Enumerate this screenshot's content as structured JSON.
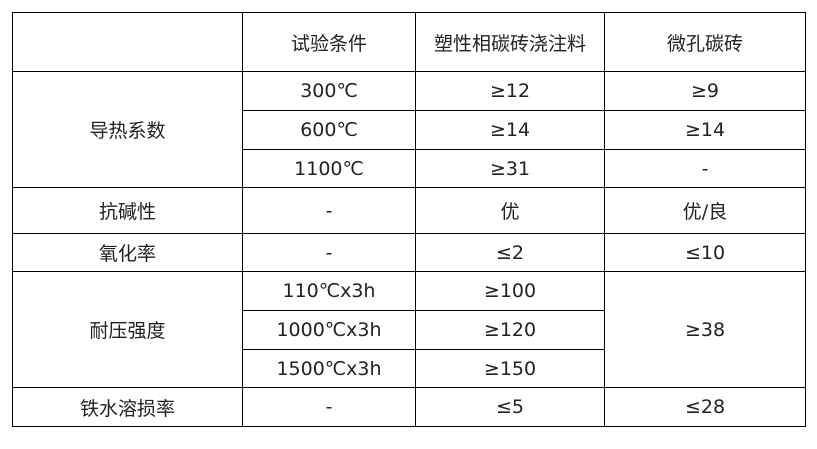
{
  "header": [
    "",
    "试验条件",
    "塑性相碳砖浇注料",
    "微孔碳砖"
  ],
  "thermal": {
    "label": "导热系数",
    "rows": [
      {
        "cond": "300℃",
        "a": "≥12",
        "b": "≥9"
      },
      {
        "cond": "600℃",
        "a": "≥14",
        "b": "≥14"
      },
      {
        "cond": "1100℃",
        "a": "≥31",
        "b": "-"
      }
    ]
  },
  "alkali": {
    "label": "抗碱性",
    "cond": "-",
    "a": "优",
    "b": "优/良"
  },
  "oxidation": {
    "label": "氧化率",
    "cond": "-",
    "a": "≤2",
    "b": "≤10"
  },
  "strength": {
    "label": "耐压强度",
    "b": "≥38",
    "rows": [
      {
        "cond": "110℃x3h",
        "a": "≥100"
      },
      {
        "cond": "1000℃x3h",
        "a": "≥120"
      },
      {
        "cond": "1500℃x3h",
        "a": "≥150"
      }
    ]
  },
  "erosion": {
    "label": "铁水溶损率",
    "cond": "-",
    "a": "≤5",
    "b": "≤28"
  }
}
